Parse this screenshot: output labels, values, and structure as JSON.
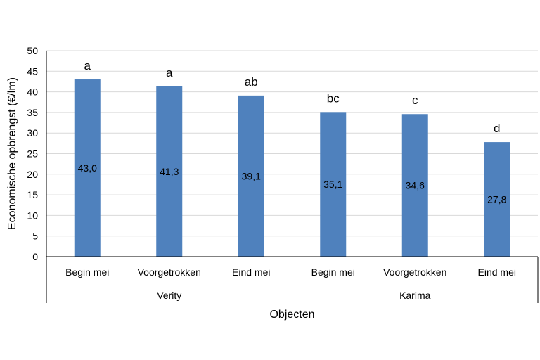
{
  "chart_data": {
    "type": "bar",
    "title": "",
    "xlabel": "Objecten",
    "ylabel": "Economische opbrengst (€/lm)",
    "ylim": [
      0,
      50
    ],
    "yticks": [
      "0",
      "5",
      "10",
      "15",
      "20",
      "25",
      "30",
      "35",
      "40",
      "45",
      "50"
    ],
    "grid": true,
    "legend": "none",
    "bar_color": "#4F81BD",
    "groups": [
      {
        "name": "Verity",
        "categories": [
          "Begin mei",
          "Voorgetrokken",
          "Eind mei"
        ]
      },
      {
        "name": "Karima",
        "categories": [
          "Begin mei",
          "Voorgetrokken",
          "Eind mei"
        ]
      }
    ],
    "values": [
      43.0,
      41.3,
      39.1,
      35.1,
      34.6,
      27.8
    ],
    "data_labels": [
      "43,0",
      "41,3",
      "39,1",
      "35,1",
      "34,6",
      "27,8"
    ],
    "significance_letters": [
      "a",
      "a",
      "ab",
      "bc",
      "c",
      "d"
    ]
  }
}
